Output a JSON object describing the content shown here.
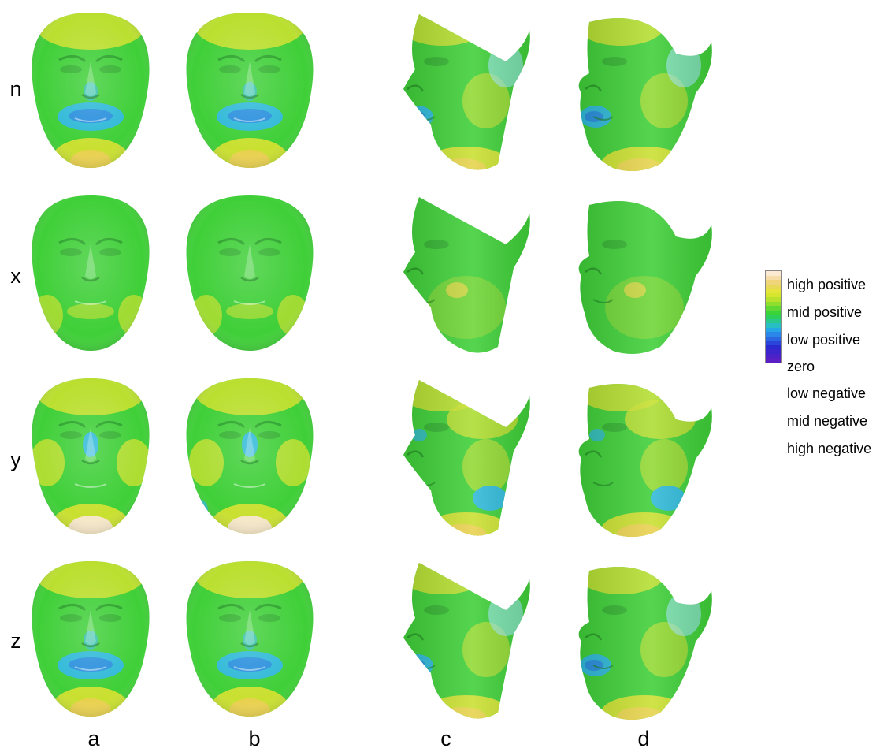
{
  "rows": [
    {
      "label": "n",
      "variant": "strong"
    },
    {
      "label": "x",
      "variant": "flat"
    },
    {
      "label": "y",
      "variant": "mixed"
    },
    {
      "label": "z",
      "variant": "strong"
    }
  ],
  "columns": [
    "a",
    "b",
    "c",
    "d"
  ],
  "legend": {
    "labels": [
      "high positive",
      "mid positive",
      "low positive",
      "zero",
      "low negative",
      "mid negative",
      "high negative"
    ],
    "colors": [
      "#fbe9d1",
      "#f6dca7",
      "#efd47a",
      "#e8d85a",
      "#e5e43a",
      "#d6e62e",
      "#b8e22c",
      "#8ede2e",
      "#5fd833",
      "#3ad33a",
      "#2ccf5a",
      "#29c98e",
      "#27bfc4",
      "#25a6e6",
      "#2a86e8",
      "#2b66e2",
      "#2a46da",
      "#2a2ad0",
      "#3a26cc",
      "#4a22c8",
      "#5a1fc4"
    ]
  },
  "colors": {
    "zero": "#3fcf38",
    "low_positive": "#c9e030",
    "mid_positive": "#e9d14f",
    "high_positive": "#f6e7c8",
    "low_negative": "#2fb9d8",
    "mid_negative": "#2a7fe0"
  }
}
